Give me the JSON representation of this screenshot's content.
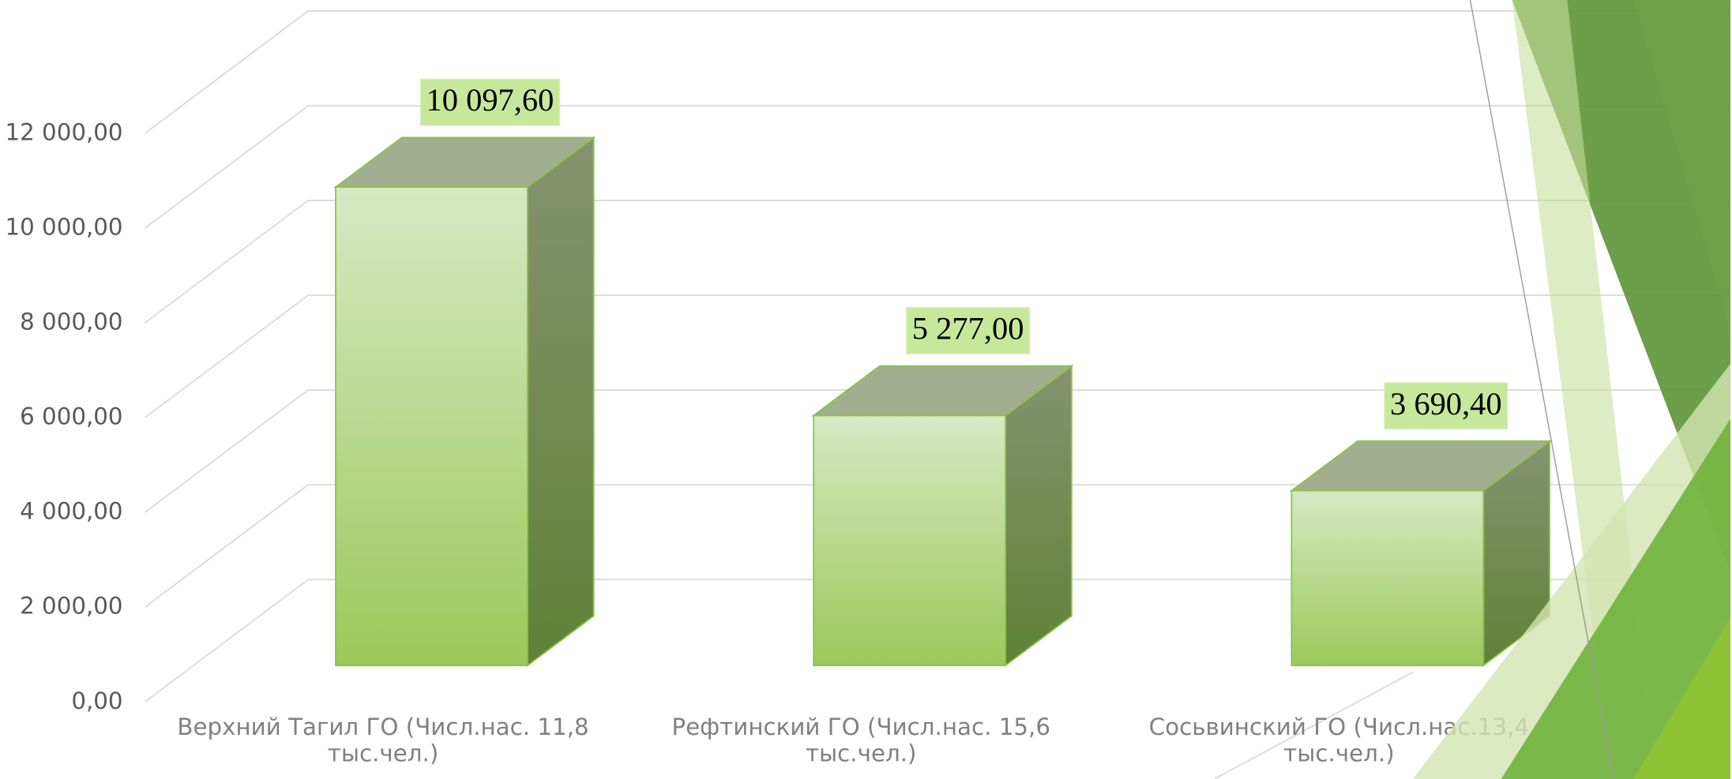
{
  "chart_data": {
    "type": "bar3d",
    "categories": [
      "Верхний Тагил ГО (Числ.нас. 11,8 тыс.чел.)",
      "Рефтинский ГО (Числ.нас. 15,6 тыс.чел.)",
      "Сосьвинский ГО (Числ.нас.13,4 тыс.чел.)"
    ],
    "values": [
      10097.6,
      5277,
      3690.4
    ],
    "value_labels": [
      "10 097,60",
      "5 277,00",
      "3 690,40"
    ],
    "color": "#9ccb5c",
    "ylim": [
      0,
      12000
    ],
    "yticks": [
      {
        "value": 0,
        "label": "0,00"
      },
      {
        "value": 2000,
        "label": "2 000,00"
      },
      {
        "value": 4000,
        "label": "4 000,00"
      },
      {
        "value": 6000,
        "label": "6 000,00"
      },
      {
        "value": 8000,
        "label": "8 000,00"
      },
      {
        "value": 10000,
        "label": "10 000,00"
      },
      {
        "value": 12000,
        "label": "12 000,00"
      }
    ],
    "grid": true
  }
}
